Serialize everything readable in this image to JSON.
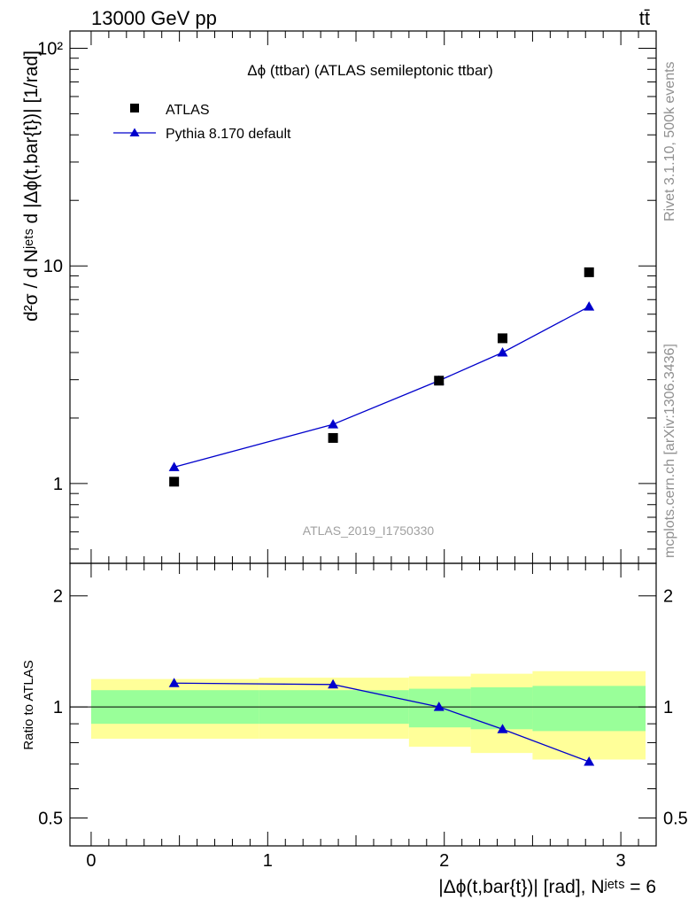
{
  "header": {
    "energy_label": "13000 GeV pp",
    "process_label": "tt̄"
  },
  "side_labels": {
    "rivet": "Rivet 3.1.10,  500k events",
    "mcplots": "mcplots.cern.ch [arXiv:1306.3436]"
  },
  "chart_data": [
    {
      "type": "scatter",
      "panel": "main",
      "title": "Δϕ (ttbar) (ATLAS semileptonic ttbar)",
      "analysis_id": "ATLAS_2019_I1750330",
      "ylabel": "d²σ / d Nʲᵉᵗˢ d |Δϕ(t,bar{t})| [1/rad]",
      "yscale": "log",
      "xlim": [
        -0.12,
        3.2
      ],
      "ylim": [
        0.43,
        120
      ],
      "y_tick_labels": [
        {
          "value": 1,
          "label": "1"
        },
        {
          "value": 10,
          "label": "10"
        },
        {
          "value": 100,
          "label": "10²"
        }
      ],
      "legend_position": "top-left",
      "series": [
        {
          "name": "ATLAS",
          "style": "markers-square",
          "color": "#000000",
          "x": [
            0.47,
            1.37,
            1.97,
            2.33,
            2.82
          ],
          "y": [
            1.02,
            1.62,
            2.97,
            4.65,
            9.35
          ]
        },
        {
          "name": "Pythia 8.170 default",
          "style": "line-triangle",
          "color": "#0000cc",
          "x": [
            0.47,
            1.37,
            1.97,
            2.33,
            2.82
          ],
          "y": [
            1.19,
            1.87,
            2.97,
            4.0,
            6.5
          ]
        }
      ]
    },
    {
      "type": "line",
      "panel": "ratio",
      "ylabel": "Ratio to ATLAS",
      "xlabel": "|Δϕ(t,bar{t})| [rad], Nʲᵉᵗˢ = 6",
      "yscale": "log",
      "xlim": [
        -0.12,
        3.2
      ],
      "ylim": [
        0.42,
        2.45
      ],
      "x_tick_labels": [
        {
          "value": 0,
          "label": "0"
        },
        {
          "value": 1,
          "label": "1"
        },
        {
          "value": 2,
          "label": "2"
        },
        {
          "value": 3,
          "label": "3"
        }
      ],
      "y_tick_labels": [
        {
          "value": 0.5,
          "label": "0.5"
        },
        {
          "value": 1,
          "label": "1"
        },
        {
          "value": 2,
          "label": "2"
        }
      ],
      "uncertainty_bands": {
        "bin_edges": [
          0.0,
          0.95,
          1.8,
          2.15,
          2.5,
          3.14
        ],
        "inner_green": {
          "color": "#99ff99",
          "low": [
            0.9,
            0.9,
            0.88,
            0.87,
            0.86
          ],
          "high": [
            1.11,
            1.11,
            1.12,
            1.13,
            1.14
          ]
        },
        "outer_yellow": {
          "color": "#ffff99",
          "low": [
            0.82,
            0.82,
            0.78,
            0.75,
            0.72
          ],
          "high": [
            1.19,
            1.2,
            1.21,
            1.23,
            1.25
          ]
        }
      },
      "series": [
        {
          "name": "Pythia 8.170 default",
          "color": "#0000cc",
          "x": [
            0.47,
            1.37,
            1.97,
            2.33,
            2.82
          ],
          "y": [
            1.16,
            1.15,
            1.0,
            0.87,
            0.71
          ],
          "yerr": [
            0.02,
            0.02,
            0.02,
            0.015,
            0.01
          ]
        }
      ]
    }
  ]
}
